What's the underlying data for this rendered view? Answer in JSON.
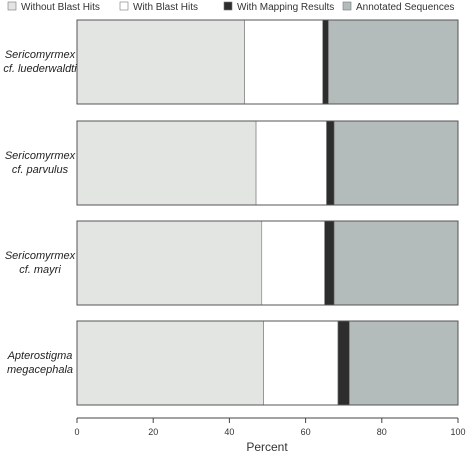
{
  "chart_data": {
    "type": "bar",
    "orientation": "horizontal",
    "stacked": true,
    "xlabel": "Percent",
    "ylabel": "",
    "xlim": [
      0,
      100
    ],
    "xticks": [
      0,
      20,
      40,
      60,
      80,
      100
    ],
    "grid": false,
    "legend_position": "top",
    "categories": [
      [
        "Sericomyrmex",
        "cf. luederwaldti"
      ],
      [
        "Sericomyrmex",
        "cf. parvulus"
      ],
      [
        "Sericomyrmex",
        "cf. mayri"
      ],
      [
        "Apterostigma",
        "megacephala"
      ]
    ],
    "series": [
      {
        "name": "Without Blast Hits",
        "color": "#e3e5e3",
        "values": [
          44,
          47,
          48.5,
          49
        ]
      },
      {
        "name": "With Blast Hits",
        "color": "#ffffff",
        "values": [
          20.5,
          18.5,
          16.5,
          19.5
        ]
      },
      {
        "name": "With Mapping Results",
        "color": "#2d2d2d",
        "values": [
          1.5,
          2,
          2.5,
          3
        ]
      },
      {
        "name": "Annotated Sequences",
        "color": "#b3bbbb",
        "values": [
          34,
          32.5,
          32.5,
          28.5
        ]
      }
    ]
  }
}
